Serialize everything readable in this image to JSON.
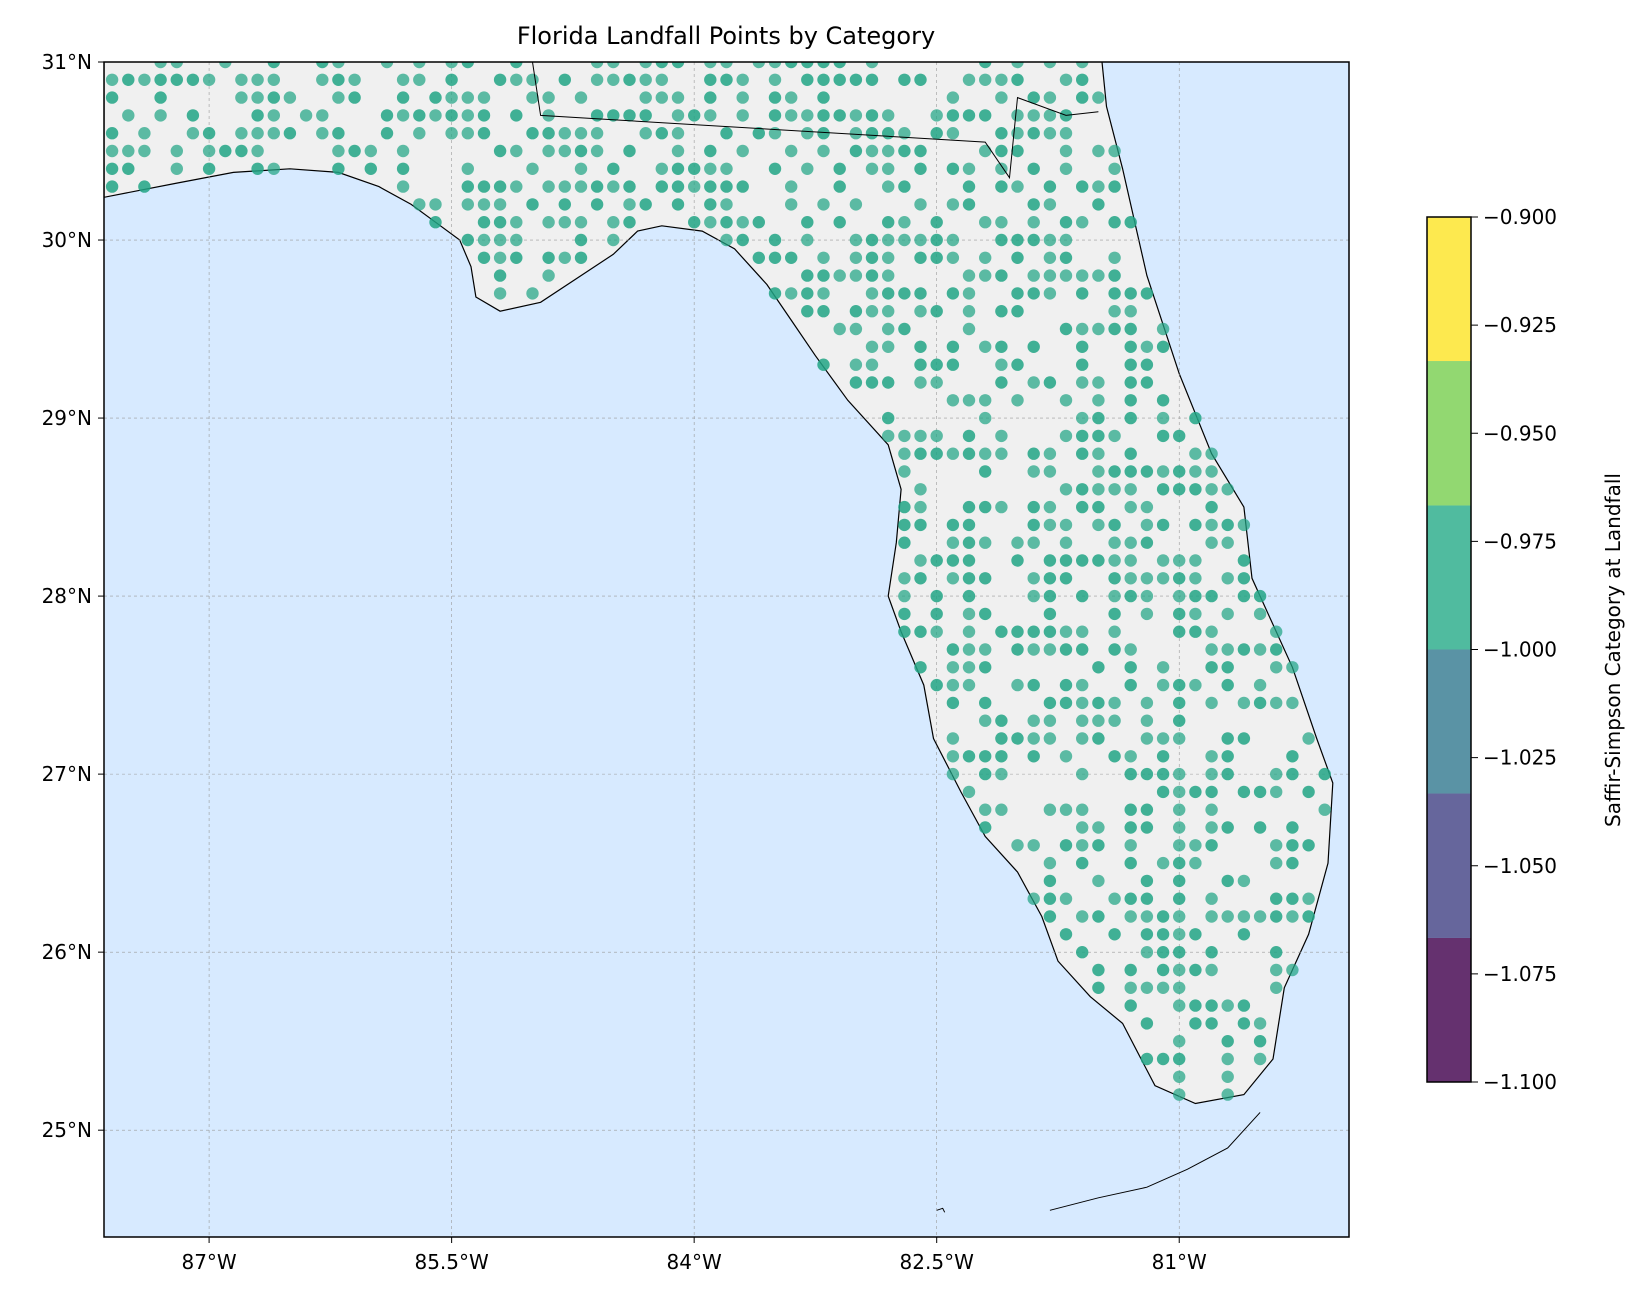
{
  "map": {
    "title": "Florida Landfall Points by Category",
    "colors": {
      "ocean": "#d7eaff",
      "land": "#f0f0f0",
      "coast": "#000000",
      "grid": "#9a9a9a",
      "point": "#21a585"
    },
    "lon_range": [
      -87.65,
      -79.95
    ],
    "lat_range": [
      24.4,
      31.0
    ],
    "lon_ticks": [
      {
        "value": -87.0,
        "label": "87°W"
      },
      {
        "value": -85.5,
        "label": "85.5°W"
      },
      {
        "value": -84.0,
        "label": "84°W"
      },
      {
        "value": -82.5,
        "label": "82.5°W"
      },
      {
        "value": -81.0,
        "label": "81°W"
      }
    ],
    "lat_ticks": [
      {
        "value": 31,
        "label": "31°N"
      },
      {
        "value": 30,
        "label": "30°N"
      },
      {
        "value": 29,
        "label": "29°N"
      },
      {
        "value": 28,
        "label": "28°N"
      },
      {
        "value": 27,
        "label": "27°N"
      },
      {
        "value": 26,
        "label": "26°N"
      },
      {
        "value": 25,
        "label": "25°N"
      }
    ],
    "point_grid_spacing_deg": 0.1,
    "point_marker": "circle"
  },
  "colorbar": {
    "label": "Saffir-Simpson Category at Landfall",
    "range": [
      -1.1,
      -0.9
    ],
    "ticks": [
      {
        "value": -0.9,
        "label": "−0.900"
      },
      {
        "value": -0.925,
        "label": "−0.925"
      },
      {
        "value": -0.95,
        "label": "−0.950"
      },
      {
        "value": -0.975,
        "label": "−0.975"
      },
      {
        "value": -1.0,
        "label": "−1.000"
      },
      {
        "value": -1.025,
        "label": "−1.025"
      },
      {
        "value": -1.05,
        "label": "−1.050"
      },
      {
        "value": -1.075,
        "label": "−1.075"
      },
      {
        "value": -1.1,
        "label": "−1.100"
      }
    ],
    "bands": [
      {
        "from": -1.1,
        "to": -1.0667,
        "color": "#65316f"
      },
      {
        "from": -1.0667,
        "to": -1.0333,
        "color": "#66669c"
      },
      {
        "from": -1.0333,
        "to": -1.0,
        "color": "#5a93a5"
      },
      {
        "from": -1.0,
        "to": -0.9667,
        "color": "#50bb9f"
      },
      {
        "from": -0.9667,
        "to": -0.9333,
        "color": "#92d871"
      },
      {
        "from": -0.9333,
        "to": -0.9,
        "color": "#fde94f"
      }
    ]
  }
}
